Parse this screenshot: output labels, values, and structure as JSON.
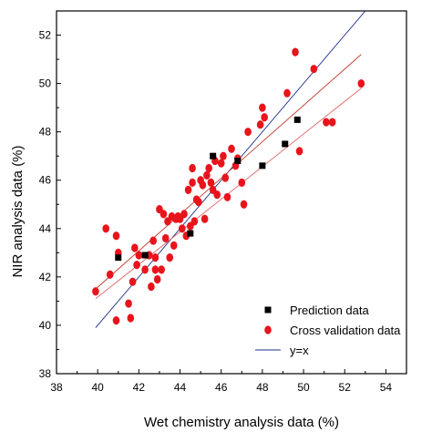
{
  "chart_data": {
    "type": "scatter",
    "xlabel": "Wet chemistry analysis data (%)",
    "ylabel": "NIR analysis data (%)",
    "xlim": [
      38,
      55
    ],
    "ylim": [
      38,
      53
    ],
    "xticks": [
      38,
      40,
      42,
      44,
      46,
      48,
      50,
      52,
      54
    ],
    "yticks": [
      38,
      40,
      42,
      44,
      46,
      48,
      50,
      52
    ],
    "grid": false,
    "legend_position": "bottom-right",
    "legend": [
      "Prediction data",
      "Cross validation data",
      "y=x"
    ],
    "colors": {
      "prediction": "#000000",
      "cross_validation": "#e8141c",
      "identity_line": "#1f2f8c",
      "fit_prediction": "#c0392b",
      "fit_cross_validation": "#e06666"
    },
    "series": [
      {
        "name": "Prediction data",
        "marker": "square",
        "x": [
          41.0,
          42.3,
          44.5,
          45.6,
          46.8,
          48.0,
          49.1,
          49.7
        ],
        "y": [
          42.8,
          42.9,
          43.8,
          47.0,
          46.8,
          46.6,
          47.5,
          48.5
        ]
      },
      {
        "name": "Cross validation data",
        "marker": "circle",
        "x": [
          39.9,
          40.4,
          40.6,
          40.9,
          41.0,
          40.9,
          41.5,
          41.7,
          41.6,
          41.8,
          41.9,
          42.0,
          42.3,
          42.5,
          42.6,
          42.7,
          42.8,
          42.8,
          42.9,
          43.0,
          43.1,
          43.2,
          43.3,
          43.4,
          43.5,
          43.6,
          43.7,
          43.8,
          43.9,
          44.0,
          44.1,
          44.2,
          44.3,
          44.4,
          44.5,
          44.6,
          44.6,
          44.7,
          44.8,
          44.9,
          45.0,
          45.1,
          45.2,
          45.3,
          45.4,
          45.5,
          45.6,
          45.7,
          45.8,
          46.0,
          46.1,
          46.2,
          46.3,
          46.5,
          46.7,
          46.8,
          47.0,
          47.1,
          47.3,
          47.9,
          48.0,
          48.1,
          49.2,
          49.6,
          49.8,
          50.5,
          51.1,
          51.4,
          52.8
        ],
        "y": [
          41.4,
          44.0,
          42.1,
          43.7,
          43.0,
          40.2,
          40.9,
          41.8,
          40.3,
          43.2,
          42.5,
          42.9,
          42.3,
          42.9,
          41.6,
          43.5,
          42.8,
          42.3,
          41.9,
          44.8,
          42.3,
          44.6,
          43.6,
          44.3,
          42.8,
          44.5,
          43.3,
          44.4,
          44.5,
          44.4,
          44.0,
          44.6,
          43.7,
          45.6,
          44.1,
          45.9,
          46.5,
          44.3,
          45.2,
          45.1,
          46.0,
          45.8,
          44.4,
          46.2,
          46.5,
          45.9,
          45.6,
          46.8,
          45.4,
          46.7,
          47.0,
          46.1,
          45.3,
          47.3,
          46.6,
          46.9,
          45.9,
          45.0,
          48.0,
          48.3,
          49.0,
          48.6,
          49.6,
          51.3,
          47.2,
          50.6,
          48.4,
          48.4,
          50.0
        ]
      }
    ],
    "lines": [
      {
        "name": "y=x",
        "x": [
          39.9,
          53.3
        ],
        "y": [
          39.9,
          53.3
        ]
      },
      {
        "name": "",
        "x": [
          39.9,
          52.8
        ],
        "y": [
          41.5,
          51.2
        ]
      },
      {
        "name": "",
        "x": [
          39.9,
          52.8
        ],
        "y": [
          41.1,
          49.8
        ]
      }
    ]
  }
}
